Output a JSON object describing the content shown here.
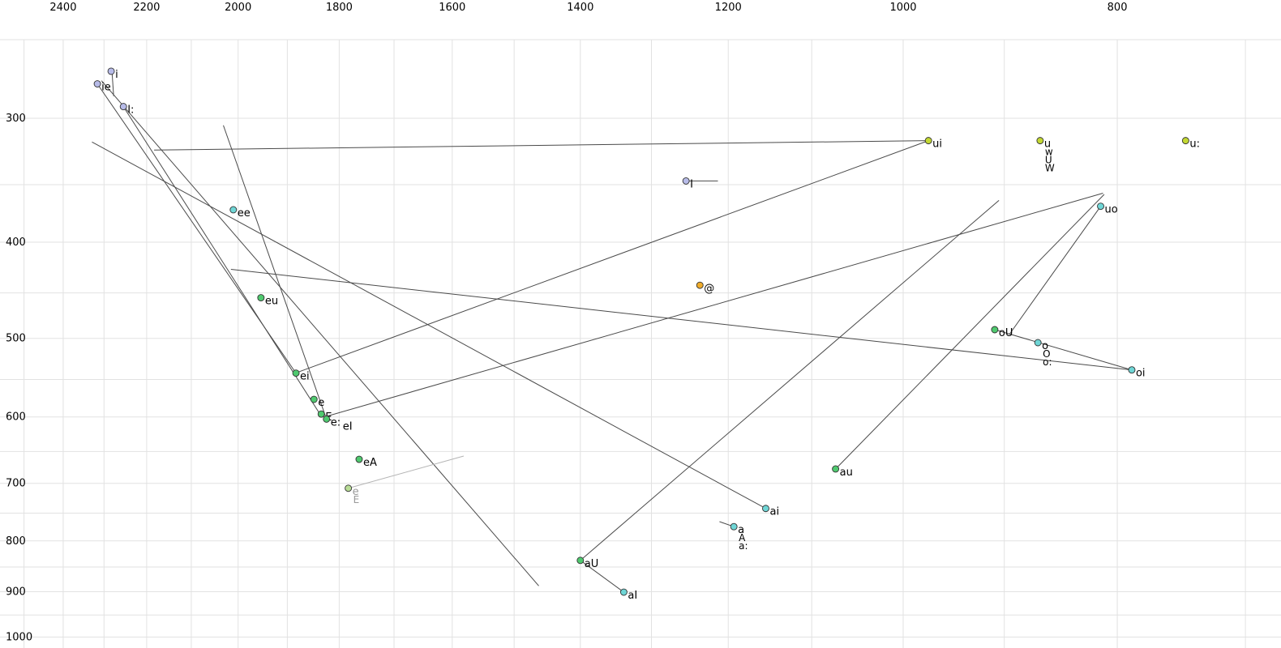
{
  "chart_data": {
    "type": "scatter",
    "title": "",
    "xlabel": "",
    "ylabel": "",
    "x_axis": {
      "scale": "log",
      "reversed": true,
      "tick_labels": [
        2400,
        2200,
        2000,
        1800,
        1600,
        1400,
        1200,
        1000,
        800
      ],
      "minor_from": 2500,
      "minor_to": 700,
      "minor_step": 100,
      "range": [
        2563,
        675
      ]
    },
    "y_axis": {
      "scale": "log",
      "increases_downward": true,
      "tick_labels": [
        300,
        400,
        500,
        600,
        700,
        800,
        900,
        1000
      ],
      "minor_from": 250,
      "minor_to": 1000,
      "minor_step": 50,
      "range": [
        246,
        1026
      ]
    },
    "colors": {
      "lavender": "#b7bbe8",
      "cyan": "#6fd6d6",
      "green": "#4fc96f",
      "yellow_green": "#c3d832",
      "orange": "#f0ac2a",
      "faded_green": "#b8dc96",
      "line": "#4a4a4a",
      "faded_line": "#b4b4b4",
      "grid": "#e2e2e2",
      "text": "#000000",
      "faded_text": "#9a9a9a",
      "dot_stroke": "#333333"
    },
    "points": [
      {
        "label": "ie",
        "f2": 2316,
        "f1": 277,
        "color": "lavender"
      },
      {
        "label": "i",
        "f2": 2283,
        "f1": 269,
        "color": "lavender"
      },
      {
        "label": "I:",
        "f2": 2254,
        "f1": 292,
        "color": "lavender"
      },
      {
        "label": "ee",
        "f2": 2010,
        "f1": 371,
        "color": "cyan"
      },
      {
        "label": "eu",
        "f2": 1953,
        "f1": 455,
        "color": "green"
      },
      {
        "label": "ei",
        "f2": 1883,
        "f1": 542,
        "color": "green"
      },
      {
        "label": "e",
        "f2": 1848,
        "f1": 576,
        "color": "green"
      },
      {
        "label": "E",
        "f2": 1834,
        "f1": 596,
        "color": "green"
      },
      {
        "label": "e:",
        "f2": 1824,
        "f1": 603,
        "color": "green"
      },
      {
        "label": "eI",
        "f2": 1801,
        "f1": 609,
        "color": "green",
        "dot": false
      },
      {
        "label": "eA",
        "f2": 1763,
        "f1": 662,
        "color": "green"
      },
      {
        "label": "e",
        "f2": 1783,
        "f1": 708,
        "color": "faded_green",
        "faded": true,
        "sub_labels": [
          "E"
        ]
      },
      {
        "label": "aU",
        "f2": 1400,
        "f1": 837,
        "color": "green"
      },
      {
        "label": "aI",
        "f2": 1338,
        "f1": 901,
        "color": "cyan"
      },
      {
        "label": "a",
        "f2": 1193,
        "f1": 774,
        "color": "cyan",
        "sub_labels": [
          "A",
          "a:"
        ]
      },
      {
        "label": "ai",
        "f2": 1154,
        "f1": 742,
        "color": "cyan"
      },
      {
        "label": "I",
        "f2": 1254,
        "f1": 347,
        "color": "lavender"
      },
      {
        "label": "@",
        "f2": 1236,
        "f1": 442,
        "color": "orange"
      },
      {
        "label": "ui",
        "f2": 974,
        "f1": 316,
        "color": "yellow_green"
      },
      {
        "label": "u",
        "f2": 867,
        "f1": 316,
        "color": "yellow_green",
        "sub_labels": [
          "w",
          "U",
          "W"
        ]
      },
      {
        "label": "u:",
        "f2": 745,
        "f1": 316,
        "color": "yellow_green"
      },
      {
        "label": "uo",
        "f2": 814,
        "f1": 368,
        "color": "cyan"
      },
      {
        "label": "oU",
        "f2": 909,
        "f1": 490,
        "color": "green"
      },
      {
        "label": "o",
        "f2": 869,
        "f1": 505,
        "color": "cyan",
        "sub_labels": [
          "O",
          "o:"
        ]
      },
      {
        "label": "oi",
        "f2": 788,
        "f1": 538,
        "color": "cyan"
      },
      {
        "label": "au",
        "f2": 1073,
        "f1": 677,
        "color": "green"
      }
    ],
    "trajectories": [
      {
        "points": [
          [
            2183,
            323
          ],
          [
            974,
            316
          ]
        ]
      },
      {
        "points": [
          [
            974,
            316
          ],
          [
            1880,
            541
          ]
        ]
      },
      {
        "points": [
          [
            2329,
            317
          ],
          [
            1154,
            742
          ]
        ]
      },
      {
        "points": [
          [
            2306,
            275
          ],
          [
            1462,
            888
          ]
        ]
      },
      {
        "points": [
          [
            2031,
            305
          ],
          [
            1824,
            603
          ]
        ]
      },
      {
        "points": [
          [
            2254,
            292
          ],
          [
            1833,
            600
          ]
        ]
      },
      {
        "points": [
          [
            2316,
            277
          ],
          [
            1883,
            542
          ]
        ]
      },
      {
        "points": [
          [
            1828,
            600
          ],
          [
            812,
            357
          ]
        ]
      },
      {
        "points": [
          [
            1073,
            677
          ],
          [
            811,
            358
          ]
        ]
      },
      {
        "points": [
          [
            814,
            368
          ],
          [
            895,
            495
          ]
        ]
      },
      {
        "points": [
          [
            909,
            490
          ],
          [
            788,
            538
          ]
        ]
      },
      {
        "points": [
          [
            2015,
            426
          ],
          [
            788,
            538
          ]
        ]
      },
      {
        "points": [
          [
            1400,
            837
          ],
          [
            905,
            363
          ]
        ]
      },
      {
        "points": [
          [
            1338,
            901
          ],
          [
            1400,
            837
          ]
        ]
      },
      {
        "points": [
          [
            1193,
            774
          ],
          [
            1211,
            765
          ]
        ]
      },
      {
        "points": [
          [
            1254,
            347
          ],
          [
            1213,
            347
          ]
        ]
      },
      {
        "points": [
          [
            2281,
            269
          ],
          [
            2277,
            285
          ]
        ]
      },
      {
        "points": [
          [
            1783,
            708
          ],
          [
            1581,
            657
          ]
        ],
        "faded": true
      }
    ]
  }
}
